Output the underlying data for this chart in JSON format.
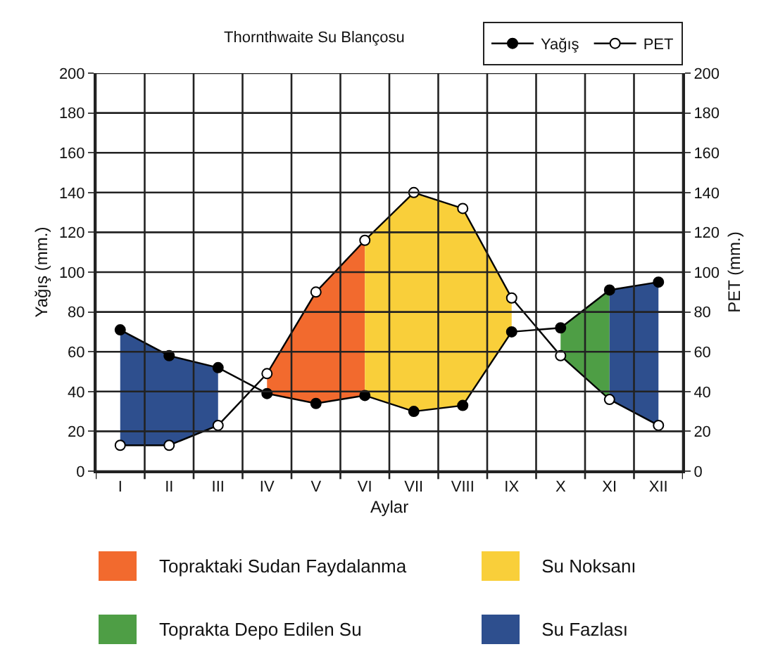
{
  "chart_data": {
    "type": "line",
    "title": "Thornthwaite Su Blançosu",
    "xlabel": "Aylar",
    "ylabel": "Yağış (mm.)",
    "y2label": "PET (mm.)",
    "categories": [
      "I",
      "II",
      "III",
      "IV",
      "V",
      "VI",
      "VII",
      "VIII",
      "IX",
      "X",
      "XI",
      "XII"
    ],
    "ylim": [
      0,
      200
    ],
    "yticks": [
      0,
      20,
      40,
      60,
      80,
      100,
      120,
      140,
      160,
      180,
      200
    ],
    "y2lim": [
      0,
      200
    ],
    "y2ticks": [
      0,
      20,
      40,
      60,
      80,
      100,
      120,
      140,
      160,
      180,
      200
    ],
    "grid": true,
    "legend": "bottom",
    "series": [
      {
        "name": "Topraktaki Sudan Faydalanma",
        "type": "area",
        "color": "#f26a2e",
        "values": [
          null,
          null,
          null,
          49,
          90,
          116,
          null,
          null,
          null,
          null,
          null,
          null
        ]
      },
      {
        "name": "Su Noksanı",
        "type": "area",
        "color": "#f9cf3a",
        "values": [
          null,
          null,
          null,
          null,
          null,
          116,
          140,
          132,
          87,
          null,
          null,
          null
        ]
      },
      {
        "name": "Toprakta Depo Edilen Su",
        "type": "area",
        "color": "#4e9e45",
        "values": [
          null,
          null,
          null,
          null,
          null,
          null,
          null,
          null,
          null,
          72,
          91,
          null
        ]
      },
      {
        "name": "Su Fazlası",
        "type": "area",
        "color": "#2e4f8e",
        "values": [
          71,
          58,
          52,
          null,
          null,
          null,
          null,
          null,
          null,
          null,
          91,
          95
        ]
      },
      {
        "name": "Yağış",
        "color": "#000000",
        "marker": "circle",
        "values": [
          71,
          58,
          52,
          39,
          34,
          38,
          30,
          33,
          70,
          72,
          91,
          95
        ]
      },
      {
        "name": "PET",
        "color": "#000000",
        "marker": "circle",
        "axis": "y2",
        "values": [
          13,
          13,
          23,
          49,
          90,
          116,
          140,
          132,
          87,
          58,
          36,
          23
        ]
      }
    ]
  }
}
